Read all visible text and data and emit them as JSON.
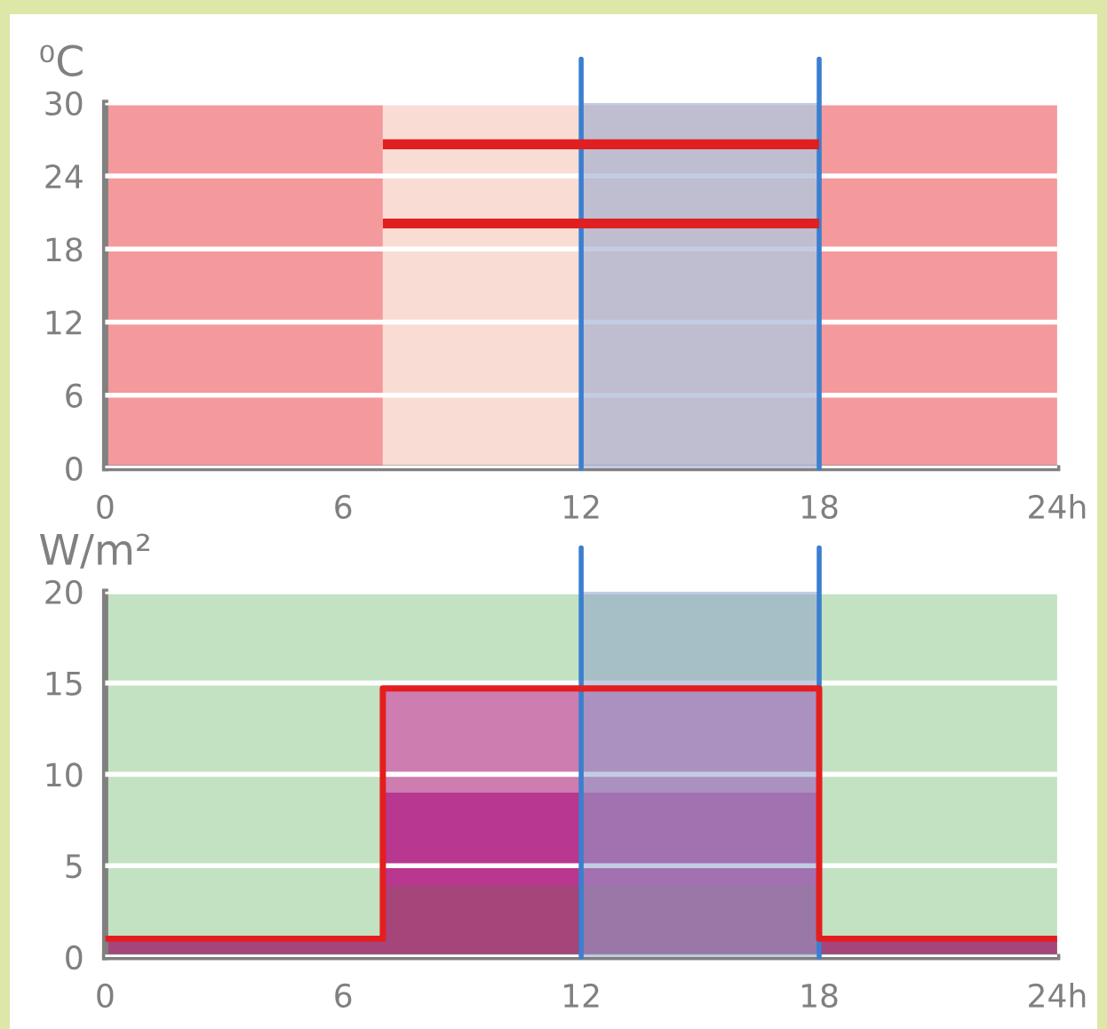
{
  "chart_data": [
    {
      "type": "line",
      "ylabel": "⁰C",
      "x": [
        7,
        18
      ],
      "series": [
        {
          "color": "#e02020",
          "values": [
            26.6,
            26.6
          ]
        },
        {
          "color": "#e02020",
          "values": [
            20.1,
            20.1
          ]
        }
      ],
      "xlim": [
        0,
        24
      ],
      "xticks": [
        0,
        6,
        12,
        {
          "value": 24,
          "label": "24h"
        },
        18
      ],
      "ylim": [
        0,
        30
      ],
      "yticks": [
        0,
        6,
        12,
        18,
        24,
        30
      ],
      "grid": "y",
      "bands": [
        {
          "axis": "x",
          "from": 0,
          "to": 7,
          "color": "#f4999c"
        },
        {
          "axis": "x",
          "from": 7,
          "to": 18,
          "color": "#f9ddd4"
        },
        {
          "axis": "x",
          "from": 18,
          "to": 24,
          "color": "#f4999c"
        },
        {
          "axis": "x",
          "from": 12,
          "to": 18,
          "color": "#8fa3cc"
        }
      ],
      "ref_lines": [
        {
          "axis": "x",
          "value": 12,
          "color": "#3a7fd0"
        },
        {
          "axis": "x",
          "value": 18,
          "color": "#3a7fd0"
        }
      ]
    },
    {
      "type": "area",
      "ylabel": "W/m²",
      "x": [
        0,
        7,
        7,
        18,
        18,
        24
      ],
      "series": [
        {
          "color": "#cd7db0",
          "values": [
            0,
            0,
            14.7,
            14.7,
            0,
            0
          ]
        },
        {
          "color": "#b8378f",
          "values": [
            0,
            0,
            9.0,
            9.0,
            0,
            0
          ]
        },
        {
          "color": "#a5457a",
          "values": [
            1,
            1,
            3.9,
            3.9,
            1,
            1
          ]
        },
        {
          "type": "line",
          "color": "#e41e1e",
          "values": [
            1,
            1,
            14.7,
            14.7,
            1,
            1
          ]
        }
      ],
      "xlim": [
        0,
        24
      ],
      "xticks": [
        0,
        6,
        12,
        18,
        {
          "value": 24,
          "label": "24h"
        }
      ],
      "ylim": [
        0,
        20
      ],
      "yticks": [
        0,
        5,
        10,
        15,
        20
      ],
      "grid": "y",
      "bands": [
        {
          "axis": "y",
          "from": 0,
          "to": 20,
          "color": "#c2e2c2"
        },
        {
          "axis": "x",
          "from": 12,
          "to": 18,
          "color": "#8fa3cc"
        }
      ],
      "ref_lines": [
        {
          "axis": "x",
          "value": 12,
          "color": "#3a7fd0"
        },
        {
          "axis": "x",
          "value": 18,
          "color": "#3a7fd0"
        }
      ]
    }
  ]
}
